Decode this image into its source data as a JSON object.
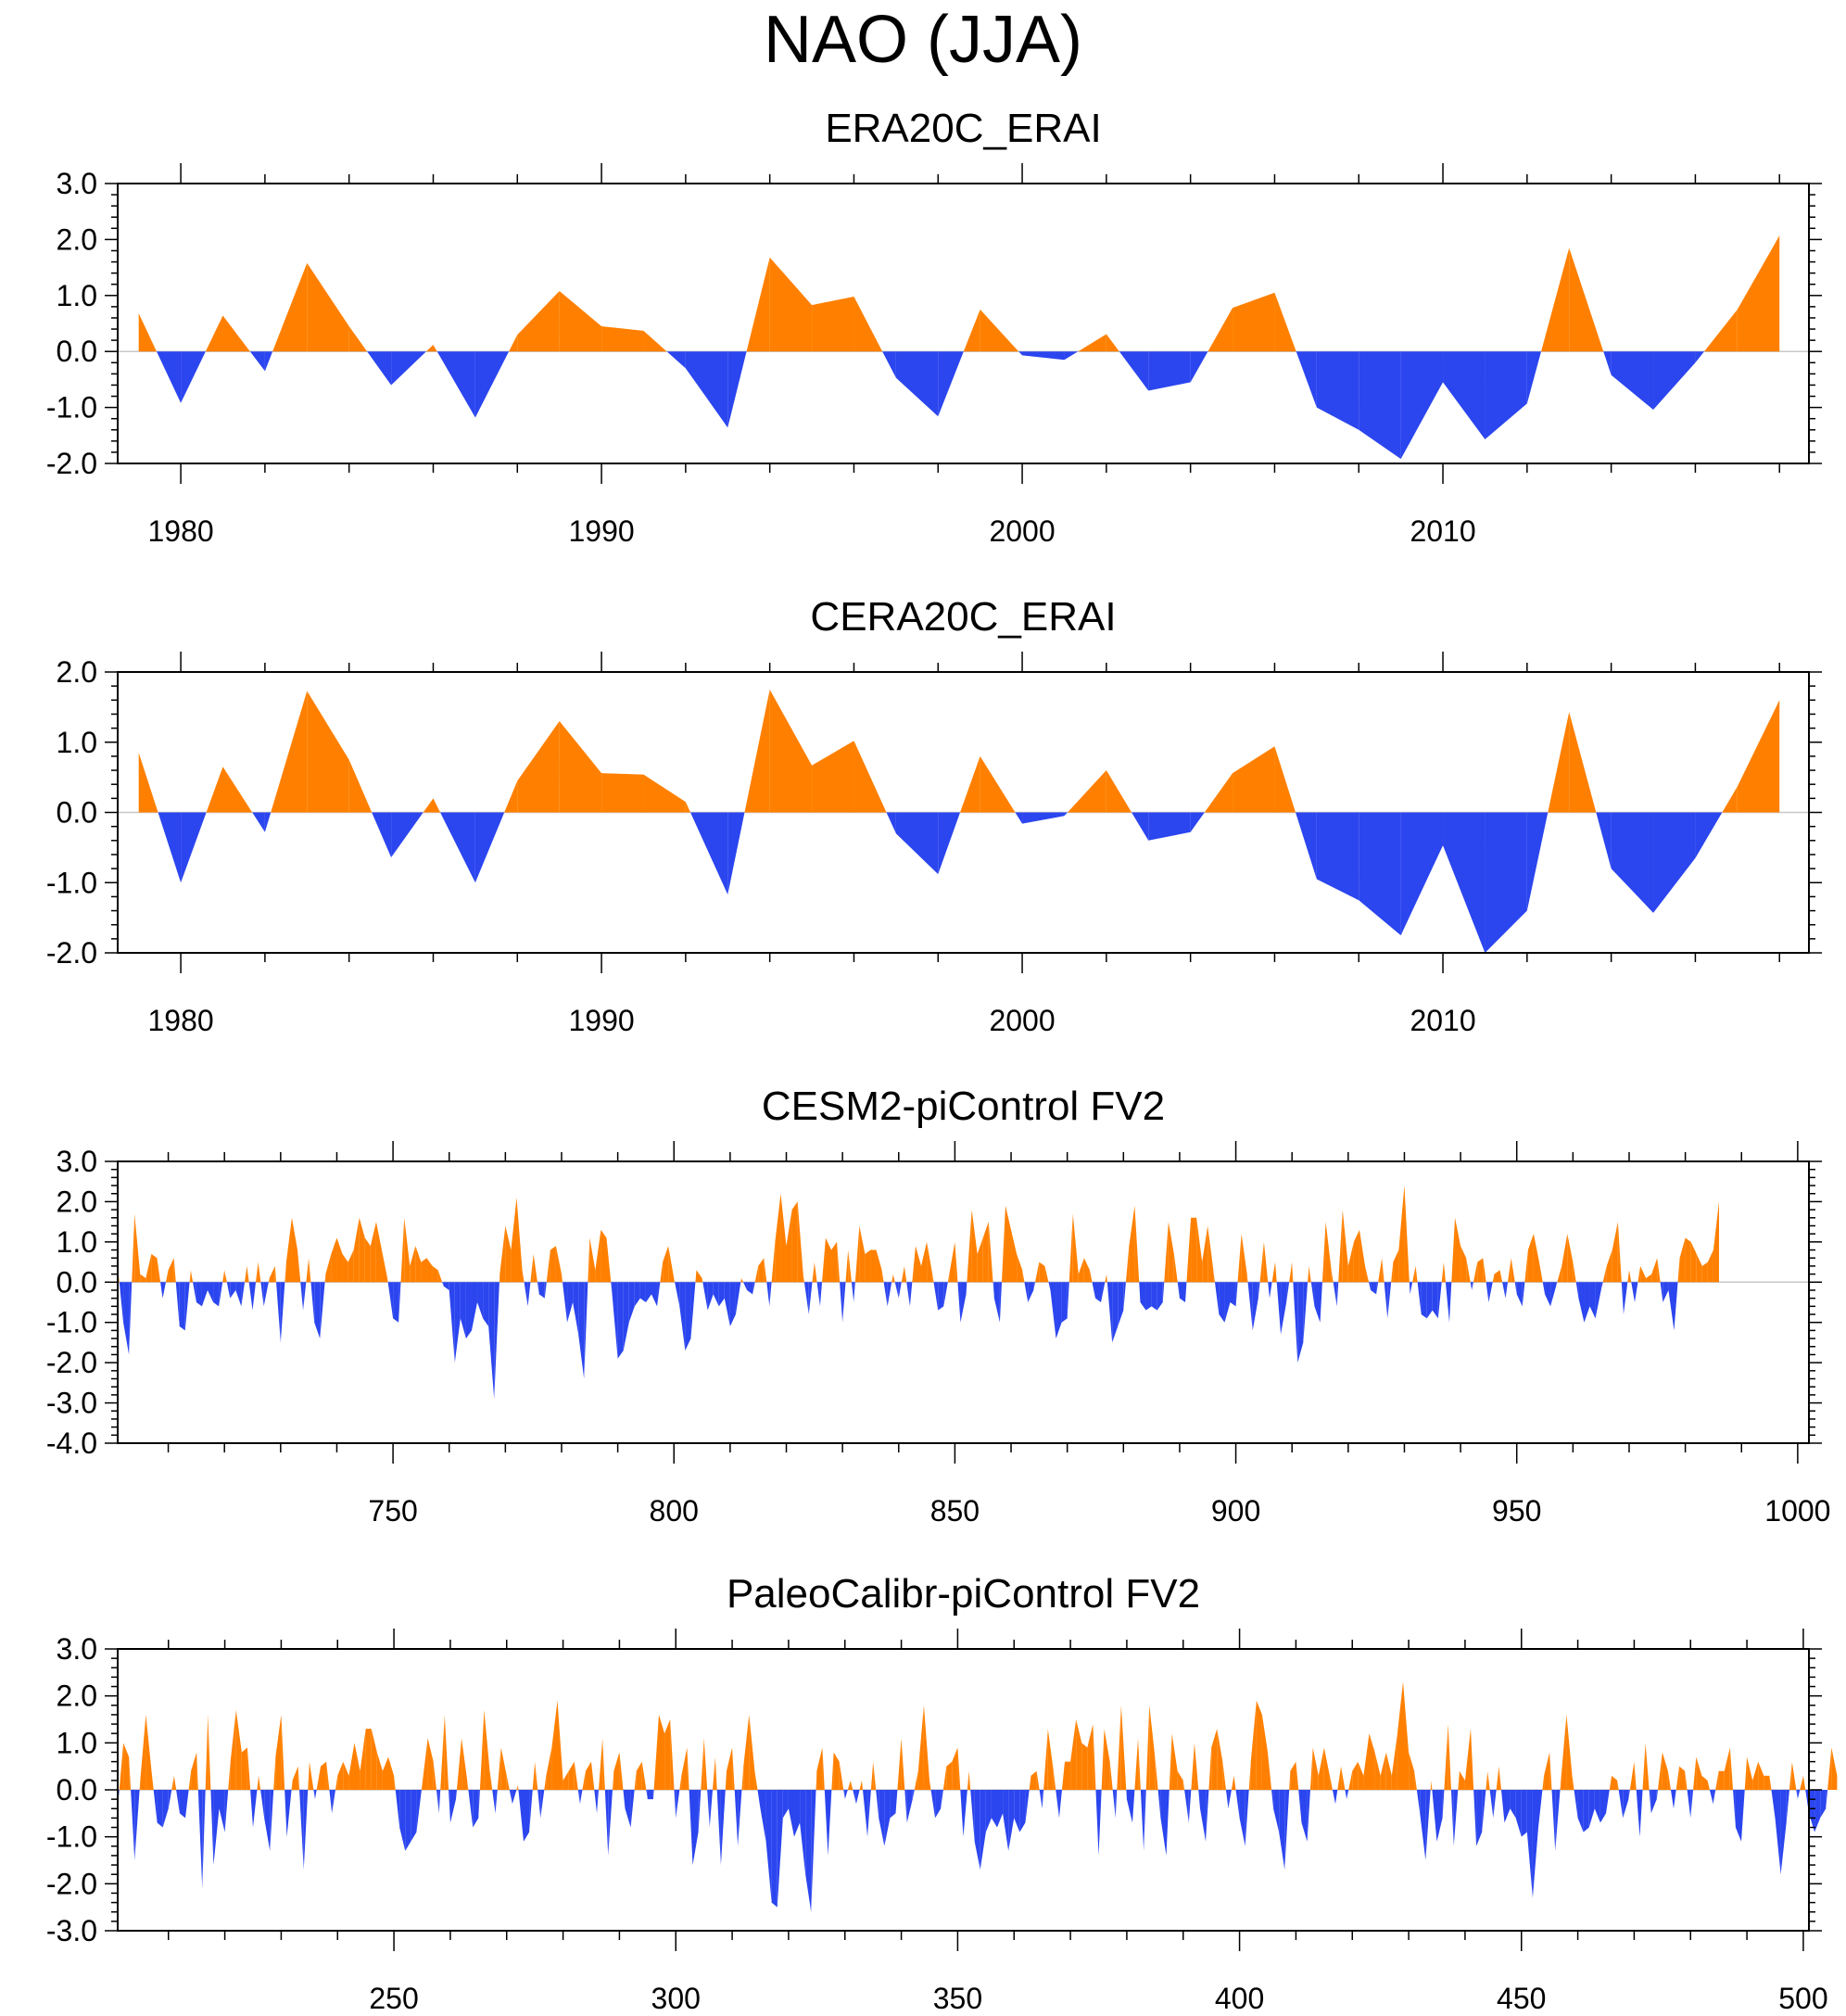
{
  "title": "NAO (JJA)",
  "colors": {
    "positive": "#ff8000",
    "negative": "#2b45ef",
    "axis": "#000000",
    "zero_line": "#c8c8c8"
  },
  "chart_data": [
    {
      "type": "area",
      "title": "ERA20C_ERAI",
      "xlim": [
        1978.5,
        2018.7
      ],
      "ylim": [
        -2.0,
        3.0
      ],
      "xticks": [
        1980,
        1990,
        2000,
        2010
      ],
      "xtick_labels": [
        "1980",
        "1990",
        "2000",
        "2010"
      ],
      "yticks": [
        3.0,
        2.0,
        1.0,
        0.0,
        -1.0,
        -2.0
      ],
      "ytick_labels": [
        "3.0",
        "2.0",
        "1.0",
        "0.0",
        "-1.0",
        "-2.0"
      ],
      "x": [
        1979,
        1980,
        1981,
        1982,
        1983,
        1984,
        1985,
        1986,
        1987,
        1988,
        1989,
        1990,
        1991,
        1992,
        1993,
        1994,
        1995,
        1996,
        1997,
        1998,
        1999,
        2000,
        2001,
        2002,
        2003,
        2004,
        2005,
        2006,
        2007,
        2008,
        2009,
        2010,
        2011,
        2012,
        2013,
        2014,
        2015,
        2016,
        2017,
        2018
      ],
      "values": [
        0.68,
        -0.92,
        0.64,
        -0.35,
        1.58,
        0.45,
        -0.6,
        0.12,
        -1.18,
        0.3,
        1.08,
        0.45,
        0.37,
        -0.3,
        -1.36,
        1.68,
        0.83,
        0.98,
        -0.47,
        -1.16,
        0.75,
        -0.07,
        -0.15,
        0.31,
        -0.7,
        -0.55,
        0.78,
        1.05,
        -1.0,
        -1.4,
        -1.92,
        -0.55,
        -1.57,
        -0.93,
        1.85,
        -0.42,
        -1.04,
        -0.2,
        0.75,
        2.07
      ]
    },
    {
      "type": "area",
      "title": "CERA20C_ERAI",
      "xlim": [
        1978.5,
        2018.7
      ],
      "ylim": [
        -2.0,
        2.0
      ],
      "xticks": [
        1980,
        1990,
        2000,
        2010
      ],
      "xtick_labels": [
        "1980",
        "1990",
        "2000",
        "2010"
      ],
      "yticks": [
        2.0,
        1.0,
        0.0,
        -1.0,
        -2.0
      ],
      "ytick_labels": [
        "2.0",
        "1.0",
        "0.0",
        "-1.0",
        "-2.0"
      ],
      "x": [
        1979,
        1980,
        1981,
        1982,
        1983,
        1984,
        1985,
        1986,
        1987,
        1988,
        1989,
        1990,
        1991,
        1992,
        1993,
        1994,
        1995,
        1996,
        1997,
        1998,
        1999,
        2000,
        2001,
        2002,
        2003,
        2004,
        2005,
        2006,
        2007,
        2008,
        2009,
        2010,
        2011,
        2012,
        2013,
        2014,
        2015,
        2016,
        2017,
        2018
      ],
      "values": [
        0.85,
        -1.0,
        0.65,
        -0.28,
        1.73,
        0.75,
        -0.64,
        0.2,
        -1.0,
        0.45,
        1.3,
        0.56,
        0.54,
        0.15,
        -1.17,
        1.75,
        0.67,
        1.02,
        -0.3,
        -0.88,
        0.8,
        -0.16,
        -0.05,
        0.6,
        -0.4,
        -0.28,
        0.56,
        0.94,
        -0.95,
        -1.25,
        -1.75,
        -0.47,
        -2.0,
        -1.4,
        1.43,
        -0.8,
        -1.43,
        -0.65,
        0.37,
        1.6
      ]
    },
    {
      "type": "area",
      "title": "CESM2-piControl FV2",
      "xlim": [
        701,
        1002
      ],
      "ylim": [
        -4.0,
        3.0
      ],
      "xticks": [
        750,
        800,
        850,
        900,
        950,
        1000
      ],
      "xtick_labels": [
        "750",
        "800",
        "850",
        "900",
        "950",
        "1000"
      ],
      "yticks": [
        3.0,
        2.0,
        1.0,
        0.0,
        -1.0,
        -2.0,
        -3.0,
        -4.0
      ],
      "ytick_labels": [
        "3.0",
        "2.0",
        "1.0",
        "0.0",
        "-1.0",
        "-2.0",
        "-3.0",
        "-4.0"
      ],
      "x_start": 701,
      "values": [
        0.4,
        -1.0,
        -1.8,
        1.7,
        0.2,
        0.1,
        0.7,
        0.6,
        -0.4,
        0.3,
        0.6,
        -1.1,
        -1.2,
        0.3,
        -0.5,
        -0.6,
        -0.2,
        -0.5,
        -0.6,
        0.3,
        -0.4,
        -0.2,
        -0.6,
        0.4,
        -0.7,
        0.5,
        -0.6,
        0.1,
        0.4,
        -1.5,
        0.5,
        1.6,
        0.8,
        -0.7,
        0.6,
        -1.0,
        -1.4,
        0.2,
        0.7,
        1.1,
        0.7,
        0.5,
        0.8,
        1.6,
        1.1,
        0.9,
        1.5,
        0.8,
        0.1,
        -0.9,
        -1.0,
        1.6,
        0.4,
        0.9,
        0.5,
        0.6,
        0.4,
        0.3,
        -0.1,
        -0.2,
        -2.0,
        -0.9,
        -1.4,
        -1.2,
        -0.5,
        -0.9,
        -1.1,
        -2.9,
        0.2,
        1.4,
        0.8,
        2.1,
        0.3,
        -0.6,
        0.7,
        -0.3,
        -0.4,
        0.8,
        0.9,
        0.2,
        -1.0,
        -0.5,
        -1.3,
        -2.4,
        1.1,
        0.3,
        1.3,
        1.1,
        -0.3,
        -1.9,
        -1.7,
        -1.0,
        -0.6,
        -0.4,
        -0.5,
        -0.3,
        -0.6,
        0.5,
        0.9,
        0.1,
        -0.6,
        -1.7,
        -1.4,
        0.3,
        0.1,
        -0.7,
        -0.3,
        -0.6,
        -0.4,
        -1.1,
        -0.8,
        0.1,
        -0.2,
        -0.3,
        0.4,
        0.6,
        -0.6,
        1.0,
        2.2,
        0.9,
        1.8,
        2.0,
        0.2,
        -0.8,
        0.5,
        -0.6,
        1.1,
        0.8,
        1.0,
        -1.0,
        0.8,
        -0.5,
        1.4,
        0.7,
        0.8,
        0.8,
        0.3,
        -0.6,
        0.2,
        -0.4,
        0.4,
        -0.6,
        0.9,
        0.4,
        1.0,
        0.2,
        -0.7,
        -0.6,
        0.2,
        1.0,
        -1.0,
        -0.3,
        1.8,
        0.7,
        1.1,
        1.5,
        -0.4,
        -1.0,
        1.9,
        1.3,
        0.7,
        0.3,
        -0.5,
        -0.2,
        0.5,
        0.4,
        -0.2,
        -1.4,
        -1.0,
        -0.9,
        1.7,
        0.2,
        0.6,
        0.3,
        -0.4,
        -0.5,
        0.2,
        -1.5,
        -1.1,
        -0.7,
        0.9,
        1.9,
        -0.5,
        -0.7,
        -0.6,
        -0.7,
        -0.5,
        1.5,
        0.7,
        -0.4,
        -0.5,
        1.6,
        1.6,
        0.5,
        1.4,
        0.3,
        -0.8,
        -1.0,
        -0.5,
        -0.6,
        1.2,
        0.2,
        -1.2,
        -0.4,
        1.0,
        -0.4,
        0.5,
        -1.3,
        -0.5,
        0.5,
        -2.0,
        -1.5,
        0.4,
        -0.6,
        -1.0,
        1.5,
        0.3,
        -0.6,
        1.8,
        0.4,
        1.0,
        1.3,
        0.4,
        -0.2,
        -0.3,
        0.6,
        -0.9,
        0.5,
        0.8,
        2.4,
        -0.3,
        0.4,
        -0.8,
        -0.9,
        -0.7,
        -0.9,
        0.5,
        -1.0,
        1.6,
        0.9,
        0.6,
        -0.2,
        0.5,
        0.6,
        -0.5,
        0.2,
        0.3,
        -0.4,
        0.6,
        -0.3,
        -0.6,
        0.8,
        1.2,
        0.5,
        -0.3,
        -0.6,
        -0.1,
        0.4,
        1.2,
        0.5,
        -0.4,
        -1.0,
        -0.6,
        -0.9,
        -0.2,
        0.4,
        0.8,
        1.5,
        -0.8,
        0.3,
        -0.5,
        0.4,
        0.1,
        0.2,
        0.6,
        -0.5,
        -0.2,
        -1.2,
        0.6,
        1.1,
        1.0,
        0.7,
        0.4,
        0.5,
        0.8,
        2.0
      ]
    },
    {
      "type": "area",
      "title": "PaleoCalibr-piControl FV2",
      "xlim": [
        201,
        501
      ],
      "ylim": [
        -3.0,
        3.0
      ],
      "xticks": [
        250,
        300,
        350,
        400,
        450,
        500
      ],
      "xtick_labels": [
        "250",
        "300",
        "350",
        "400",
        "450",
        "500"
      ],
      "yticks": [
        3.0,
        2.0,
        1.0,
        0.0,
        -1.0,
        -2.0,
        -3.0
      ],
      "ytick_labels": [
        "3.0",
        "2.0",
        "1.0",
        "0.0",
        "-1.0",
        "-2.0",
        "-3.0"
      ],
      "x_start": 201,
      "values": [
        -0.4,
        1.0,
        0.7,
        -1.5,
        0.2,
        1.6,
        0.4,
        -0.7,
        -0.8,
        -0.4,
        0.3,
        -0.5,
        -0.6,
        0.4,
        0.8,
        -2.1,
        1.6,
        -1.6,
        -0.4,
        -0.9,
        0.6,
        1.7,
        0.8,
        0.9,
        -0.8,
        0.3,
        -0.6,
        -1.3,
        0.7,
        1.6,
        -1.0,
        0.2,
        0.5,
        -1.7,
        0.6,
        -0.2,
        0.5,
        0.6,
        -0.5,
        0.3,
        0.6,
        0.3,
        1.0,
        0.4,
        1.3,
        1.3,
        0.8,
        0.4,
        0.7,
        0.3,
        -0.8,
        -1.3,
        -1.1,
        -0.9,
        0.1,
        1.1,
        0.6,
        -0.5,
        1.6,
        -0.7,
        -0.2,
        1.1,
        0.2,
        -0.8,
        -0.6,
        1.7,
        0.4,
        -0.5,
        0.9,
        0.3,
        -0.3,
        0.1,
        -1.1,
        -0.9,
        0.6,
        -0.6,
        0.3,
        0.9,
        1.9,
        0.2,
        0.4,
        0.6,
        -0.3,
        0.4,
        0.6,
        -0.5,
        1.1,
        -1.4,
        0.4,
        0.8,
        -0.4,
        -0.8,
        0.4,
        0.6,
        -0.2,
        -0.2,
        1.6,
        1.2,
        1.5,
        -0.6,
        0.3,
        0.9,
        -1.6,
        -0.9,
        1.1,
        -0.8,
        0.7,
        -1.6,
        0.4,
        0.9,
        -1.2,
        0.5,
        1.6,
        0.4,
        -0.4,
        -1.1,
        -2.4,
        -2.5,
        -0.6,
        -0.4,
        -1.0,
        -0.7,
        -1.8,
        -2.6,
        0.4,
        0.9,
        -1.4,
        0.8,
        0.6,
        -0.2,
        0.2,
        -0.3,
        0.2,
        -1.0,
        0.6,
        -0.6,
        -1.2,
        -0.6,
        -0.5,
        1.1,
        -0.7,
        -0.2,
        0.4,
        1.8,
        0.2,
        -0.6,
        -0.4,
        0.5,
        0.6,
        0.9,
        -1.0,
        0.4,
        -1.1,
        -1.7,
        -0.9,
        -0.6,
        -0.8,
        -0.5,
        -1.3,
        -0.6,
        -0.9,
        -0.7,
        0.3,
        0.4,
        -0.4,
        1.3,
        0.4,
        -0.6,
        0.6,
        0.6,
        1.5,
        1.0,
        0.9,
        1.4,
        -1.4,
        1.3,
        0.6,
        -0.6,
        1.8,
        -0.2,
        -0.7,
        1.1,
        -1.3,
        1.8,
        0.7,
        -0.6,
        -1.4,
        1.2,
        0.4,
        0.2,
        -0.7,
        1.0,
        -0.4,
        -1.1,
        0.9,
        1.3,
        0.6,
        -0.4,
        0.3,
        -0.6,
        -1.2,
        0.6,
        1.9,
        1.6,
        0.8,
        -0.4,
        -0.9,
        -1.7,
        0.4,
        0.6,
        -0.7,
        -1.1,
        0.9,
        0.3,
        0.9,
        0.3,
        -0.3,
        0.5,
        -0.2,
        0.4,
        0.6,
        0.3,
        1.2,
        0.8,
        0.3,
        0.8,
        0.3,
        1.2,
        2.3,
        0.8,
        0.4,
        -0.5,
        -1.5,
        0.2,
        -1.1,
        -0.6,
        1.4,
        -1.2,
        0.4,
        0.2,
        1.3,
        -1.2,
        -0.9,
        0.4,
        -0.6,
        0.5,
        -0.7,
        -0.4,
        -0.6,
        -1.0,
        -0.9,
        -2.3,
        -0.8,
        0.3,
        0.8,
        -1.3,
        0.2,
        1.6,
        0.3,
        -0.6,
        -0.9,
        -0.8,
        -0.4,
        -0.7,
        -0.5,
        0.3,
        0.2,
        -0.6,
        -0.2,
        0.6,
        -1.0,
        1.0,
        -0.5,
        -0.2,
        0.8,
        0.4,
        -0.4,
        0.5,
        0.4,
        -0.6,
        0.7,
        0.3,
        0.2,
        -0.3,
        0.4,
        0.4,
        0.9,
        -0.8,
        -1.1,
        0.7,
        0.2,
        0.6,
        0.3,
        0.3,
        -0.6,
        -1.8,
        -0.7,
        0.6,
        -0.2,
        0.3,
        -0.5,
        -0.9,
        -0.6,
        -0.4,
        0.9,
        0.3
      ]
    }
  ]
}
